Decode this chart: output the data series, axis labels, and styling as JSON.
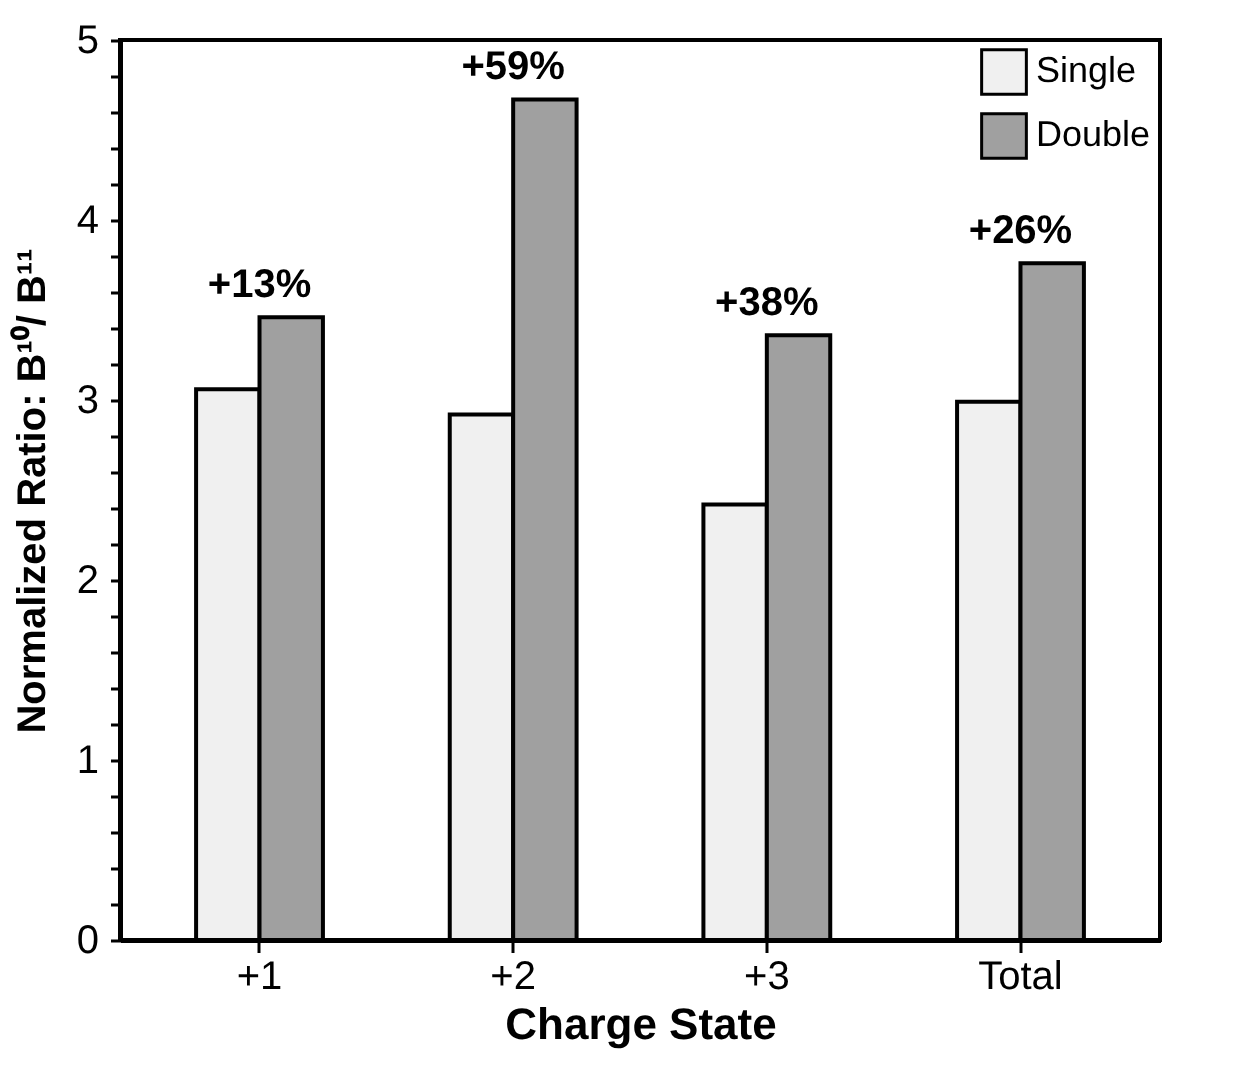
{
  "chart_data": {
    "type": "bar",
    "xlabel": "Charge State",
    "ylabel": "Normalized Ratio:  B¹⁰/ B¹¹",
    "categories": [
      "+1",
      "+2",
      "+3",
      "Total"
    ],
    "series": [
      {
        "name": "Single",
        "color": "#f0f0f0",
        "values": [
          3.06,
          2.92,
          2.42,
          2.99
        ]
      },
      {
        "name": "Double",
        "color": "#a0a0a0",
        "values": [
          3.46,
          4.67,
          3.36,
          3.76
        ]
      }
    ],
    "ylim": [
      0,
      5
    ],
    "yticks": [
      0,
      {
        "value": 0.2,
        "label": null
      },
      {
        "value": 0.4,
        "label": null
      },
      {
        "value": 0.6,
        "label": null
      },
      {
        "value": 0.8,
        "label": null
      },
      1,
      {
        "value": 1.2,
        "label": null
      },
      {
        "value": 1.4,
        "label": null
      },
      {
        "value": 1.6,
        "label": null
      },
      {
        "value": 1.8,
        "label": null
      },
      2,
      {
        "value": 2.2,
        "label": null
      },
      {
        "value": 2.4,
        "label": null
      },
      {
        "value": 2.6,
        "label": null
      },
      {
        "value": 2.8,
        "label": null
      },
      3,
      {
        "value": 3.2,
        "label": null
      },
      {
        "value": 3.4,
        "label": null
      },
      {
        "value": 3.6,
        "label": null
      },
      {
        "value": 3.8,
        "label": null
      },
      4,
      {
        "value": 4.2,
        "label": null
      },
      {
        "value": 4.4,
        "label": null
      },
      {
        "value": 4.6,
        "label": null
      },
      {
        "value": 4.8,
        "label": null
      },
      5
    ],
    "annotations": [
      {
        "text": "+13%",
        "x": "+1",
        "y": 3.46
      },
      {
        "text": "+59%",
        "x": "+2",
        "y": 4.67
      },
      {
        "text": "+38%",
        "x": "+3",
        "y": 3.36
      },
      {
        "text": "+26%",
        "x": "Total",
        "y": 3.76
      }
    ],
    "legend": "top right",
    "grid": false
  }
}
